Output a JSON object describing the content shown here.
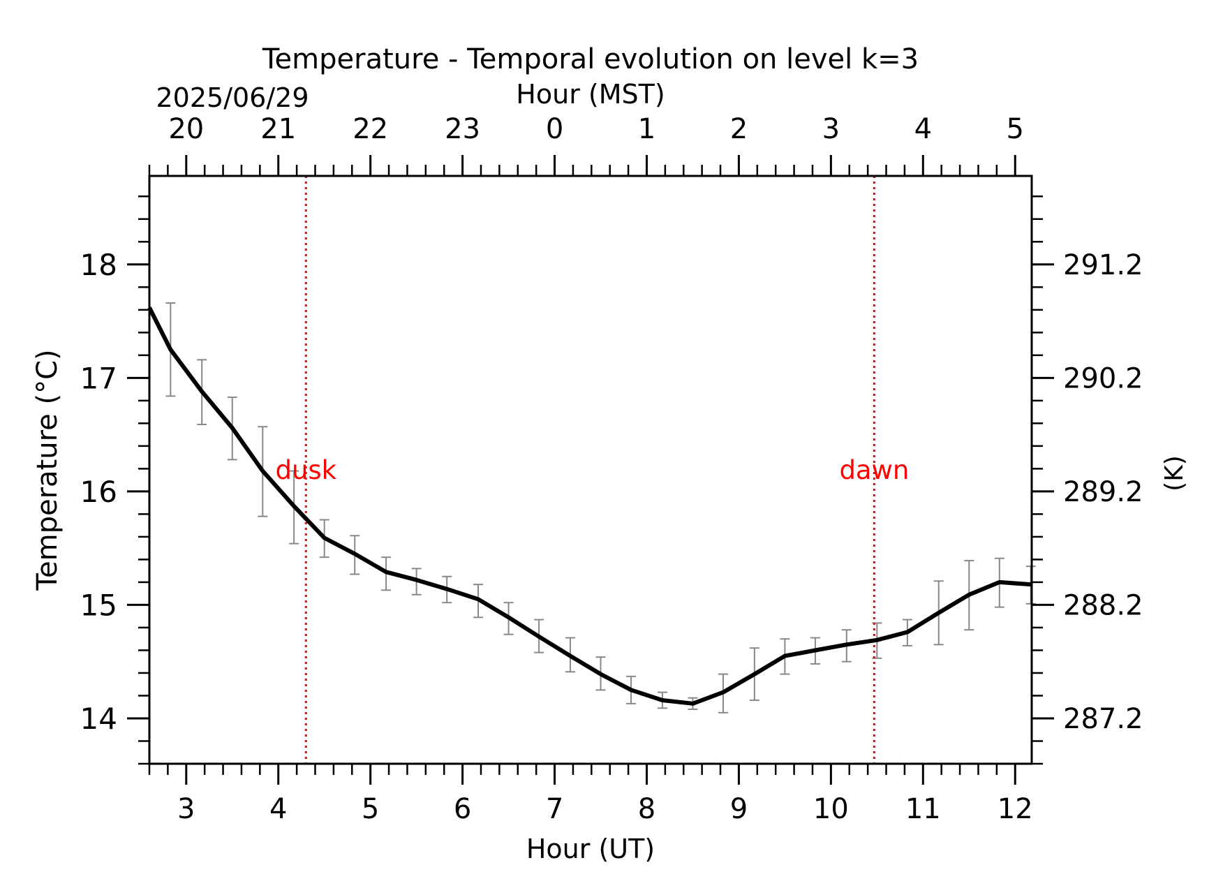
{
  "chart_data": {
    "type": "line",
    "title": "Temperature - Temporal evolution on level k=3",
    "date_label": "2025/06/29",
    "xlabel": "Hour (UT)",
    "xlabel_top": "Hour (MST)",
    "ylabel": "Temperature (°C)",
    "ylabel_right": "(K)",
    "xlim": [
      2.6,
      12.18
    ],
    "ylim": [
      13.6,
      18.78
    ],
    "x_ticks": [
      3,
      4,
      5,
      6,
      7,
      8,
      9,
      10,
      11,
      12
    ],
    "x_tick_labels": [
      "3",
      "4",
      "5",
      "6",
      "7",
      "8",
      "9",
      "10",
      "11",
      "12"
    ],
    "top_tick_labels": [
      "20",
      "21",
      "22",
      "23",
      "0",
      "1",
      "2",
      "3",
      "4",
      "5"
    ],
    "y_ticks": [
      14,
      15,
      16,
      17,
      18
    ],
    "y_tick_labels": [
      "14",
      "15",
      "16",
      "17",
      "18"
    ],
    "right_tick_labels": [
      "287.2",
      "288.2",
      "289.2",
      "290.2",
      "291.2"
    ],
    "grid": false,
    "series": [
      {
        "values_x": [
          2.6,
          2.83,
          3.17,
          3.5,
          3.83,
          4.17,
          4.5,
          4.83,
          5.17,
          5.5,
          5.83,
          6.17,
          6.5,
          6.83,
          7.17,
          7.5,
          7.83,
          8.17,
          8.5,
          8.83,
          9.17,
          9.5,
          9.83,
          10.17,
          10.5,
          10.83,
          11.17,
          11.5,
          11.83,
          12.18
        ],
        "values_y": [
          17.62,
          17.25,
          16.88,
          16.56,
          16.18,
          15.87,
          15.59,
          15.45,
          15.29,
          15.22,
          15.14,
          15.05,
          14.89,
          14.72,
          14.55,
          14.39,
          14.25,
          14.16,
          14.13,
          14.23,
          14.39,
          14.55,
          14.6,
          14.65,
          14.69,
          14.76,
          14.93,
          15.09,
          15.2,
          15.18
        ],
        "error_x": [
          2.83,
          3.17,
          3.5,
          3.83,
          4.17,
          4.5,
          4.83,
          5.17,
          5.5,
          5.83,
          6.17,
          6.5,
          6.83,
          7.17,
          7.5,
          7.83,
          8.17,
          8.5,
          8.83,
          9.17,
          9.5,
          9.83,
          10.17,
          10.5,
          10.83,
          11.17,
          11.5,
          11.83,
          12.17
        ],
        "error_low": [
          16.84,
          16.59,
          16.28,
          15.78,
          15.54,
          15.42,
          15.27,
          15.13,
          15.09,
          15.02,
          14.89,
          14.74,
          14.58,
          14.41,
          14.25,
          14.13,
          14.09,
          14.08,
          14.05,
          14.16,
          14.39,
          14.48,
          14.5,
          14.53,
          14.64,
          14.65,
          14.78,
          14.98,
          15.01
        ],
        "error_high": [
          17.66,
          17.16,
          16.83,
          16.57,
          16.18,
          15.75,
          15.61,
          15.42,
          15.32,
          15.25,
          15.18,
          15.02,
          14.87,
          14.71,
          14.54,
          14.37,
          14.23,
          14.18,
          14.39,
          14.62,
          14.7,
          14.71,
          14.78,
          14.84,
          14.87,
          15.21,
          15.39,
          15.41,
          15.34
        ],
        "line_color": "#000000",
        "error_color": "#888888"
      }
    ],
    "vlines": [
      {
        "x": 4.3,
        "label": "dusk",
        "label_y": 16.19,
        "color": "#ff0000"
      },
      {
        "x": 10.47,
        "label": "dawn",
        "label_y": 16.19,
        "color": "#ff0000"
      }
    ]
  }
}
